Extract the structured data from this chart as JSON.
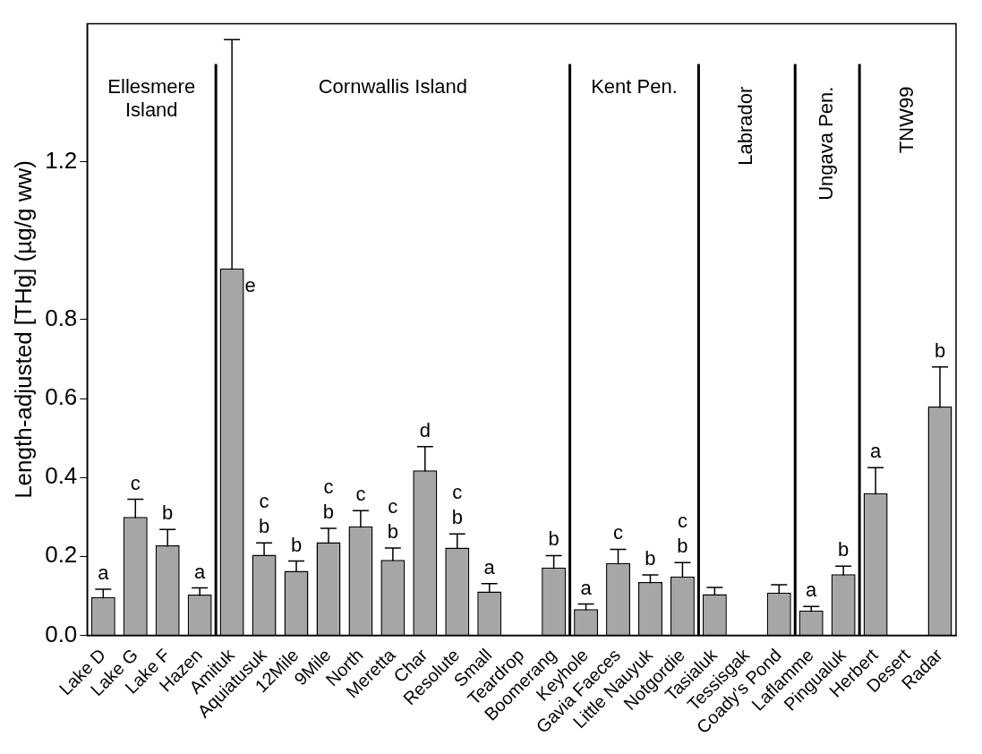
{
  "chart_data": {
    "type": "bar",
    "ylabel": "Length-adjusted [THg] (µg/g ww)",
    "categories": [
      "Lake D",
      "Lake G",
      "Lake F",
      "Hazen",
      "Amituk",
      "Aquiatusuk",
      "12Mile",
      "9Mile",
      "North",
      "Meretta",
      "Char",
      "Resolute",
      "Small",
      "Teardrop",
      "Boomerang",
      "Keyhole",
      "Gavia Faeces",
      "Little Nauyuk",
      "Notgordie",
      "Tasialuk",
      "Tessisgak",
      "Coady's Pond",
      "Laflamme",
      "Pingualuk",
      "Herbert",
      "Desert",
      "Radar"
    ],
    "values": [
      0.097,
      0.3,
      0.228,
      0.103,
      0.93,
      0.204,
      0.163,
      0.236,
      0.276,
      0.191,
      0.418,
      0.222,
      0.111,
      null,
      0.172,
      0.066,
      0.183,
      0.135,
      0.149,
      0.104,
      null,
      0.108,
      0.063,
      0.155,
      0.36,
      null,
      0.58
    ],
    "errors": [
      0.02,
      0.045,
      0.04,
      0.017,
      0.58,
      0.03,
      0.025,
      0.035,
      0.04,
      0.03,
      0.06,
      0.035,
      0.02,
      null,
      0.03,
      0.013,
      0.035,
      0.018,
      0.035,
      0.017,
      null,
      0.02,
      0.01,
      0.02,
      0.065,
      null,
      0.1
    ],
    "color": "#a6a6a6",
    "ylim": [
      0,
      1.55
    ],
    "yticks": [
      {
        "value": 0,
        "label": "0.0"
      },
      0.2,
      0.4,
      0.6,
      0.8,
      1.2
    ],
    "annotations": [
      "Ellesmere Island",
      "Cornwallis Island",
      "Kent Pen.",
      "Labrador",
      "Ungava Pen.",
      "TNW99",
      {
        "text": "a",
        "x": "Lake D",
        "y": 0.097
      },
      {
        "text": "c",
        "x": "Lake G",
        "y": 0.3
      },
      {
        "text": "b",
        "x": "Lake F",
        "y": 0.228
      },
      {
        "text": "a",
        "x": "Hazen",
        "y": 0.103
      },
      {
        "text": "e",
        "x": "Amituk",
        "y": 0.93
      },
      {
        "text": "b",
        "x": "Aquiatusuk",
        "y": 0.204
      },
      {
        "text": "c",
        "x": "Aquiatusuk",
        "y": 0.204
      },
      {
        "text": "b",
        "x": "12Mile",
        "y": 0.163
      },
      {
        "text": "b",
        "x": "9Mile",
        "y": 0.236
      },
      {
        "text": "c",
        "x": "9Mile",
        "y": 0.236
      },
      {
        "text": "c",
        "x": "North",
        "y": 0.276
      },
      {
        "text": "b",
        "x": "Meretta",
        "y": 0.191
      },
      {
        "text": "c",
        "x": "Meretta",
        "y": 0.191
      },
      {
        "text": "d",
        "x": "Char",
        "y": 0.418
      },
      {
        "text": "b",
        "x": "Resolute",
        "y": 0.222
      },
      {
        "text": "c",
        "x": "Resolute",
        "y": 0.222
      },
      {
        "text": "a",
        "x": "Small",
        "y": 0.111
      },
      {
        "text": "b",
        "x": "Boomerang",
        "y": 0.172
      },
      {
        "text": "a",
        "x": "Keyhole",
        "y": 0.066
      },
      {
        "text": "c",
        "x": "Gavia Faeces",
        "y": 0.183
      },
      {
        "text": "b",
        "x": "Little Nauyuk",
        "y": 0.135
      },
      {
        "text": "b",
        "x": "Notgordie",
        "y": 0.149
      },
      {
        "text": "c",
        "x": "Notgordie",
        "y": 0.149
      },
      {
        "text": "a",
        "x": "Laflamme",
        "y": 0.063
      },
      {
        "text": "b",
        "x": "Pingualuk",
        "y": 0.155
      },
      {
        "text": "a",
        "x": "Herbert",
        "y": 0.36
      },
      {
        "text": "b",
        "x": "Radar",
        "y": 0.58
      }
    ],
    "grid": false,
    "legend": false
  }
}
